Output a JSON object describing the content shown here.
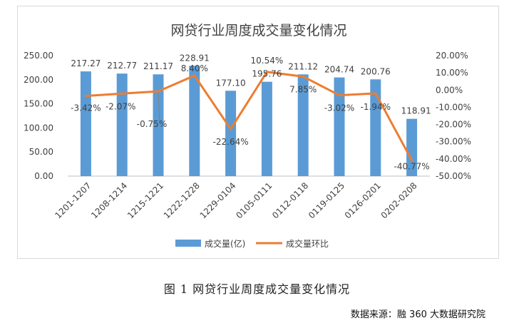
{
  "chart_data": {
    "type": "bar",
    "title": "网贷行业周度成交量变化情况",
    "categories": [
      "1201-1207",
      "1208-1214",
      "1215-1221",
      "1222-1228",
      "1229-0104",
      "0105-0111",
      "0112-0118",
      "0119-0125",
      "0126-0201",
      "0202-0208"
    ],
    "series": [
      {
        "name": "成交量(亿)",
        "type": "bar",
        "axis": "left",
        "color": "#5b9bd5",
        "values": [
          217.27,
          212.77,
          211.17,
          228.91,
          177.1,
          195.76,
          211.12,
          204.74,
          200.76,
          118.91
        ],
        "labels": [
          "217.27",
          "212.77",
          "211.17",
          "228.91",
          "177.10",
          "195.76",
          "211.12",
          "204.74",
          "200.76",
          "118.91"
        ]
      },
      {
        "name": "成交量环比",
        "type": "line",
        "axis": "right",
        "color": "#ed7d31",
        "values": [
          -3.42,
          -2.07,
          -0.75,
          8.4,
          -22.64,
          10.54,
          7.85,
          -3.02,
          -1.94,
          -40.77
        ],
        "labels": [
          "-3.42%",
          "-2.07%",
          "-0.75%",
          "8.40%",
          "-22.64%",
          "10.54%",
          "7.85%",
          "-3.02%",
          "-1.94%",
          "-40.77%"
        ]
      }
    ],
    "y_left": {
      "min": 0,
      "max": 250,
      "ticks": [
        "0.00",
        "50.00",
        "100.00",
        "150.00",
        "200.00",
        "250.00"
      ]
    },
    "y_right": {
      "min": -50,
      "max": 20,
      "ticks": [
        "-50.00%",
        "-40.00%",
        "-30.00%",
        "-20.00%",
        "-10.00%",
        "0.00%",
        "10.00%",
        "20.00%"
      ]
    },
    "grid": false,
    "legend_position": "bottom"
  },
  "caption": "图 1  网贷行业周度成交量变化情况",
  "source": "数据来源：融 360 大数据研究院"
}
